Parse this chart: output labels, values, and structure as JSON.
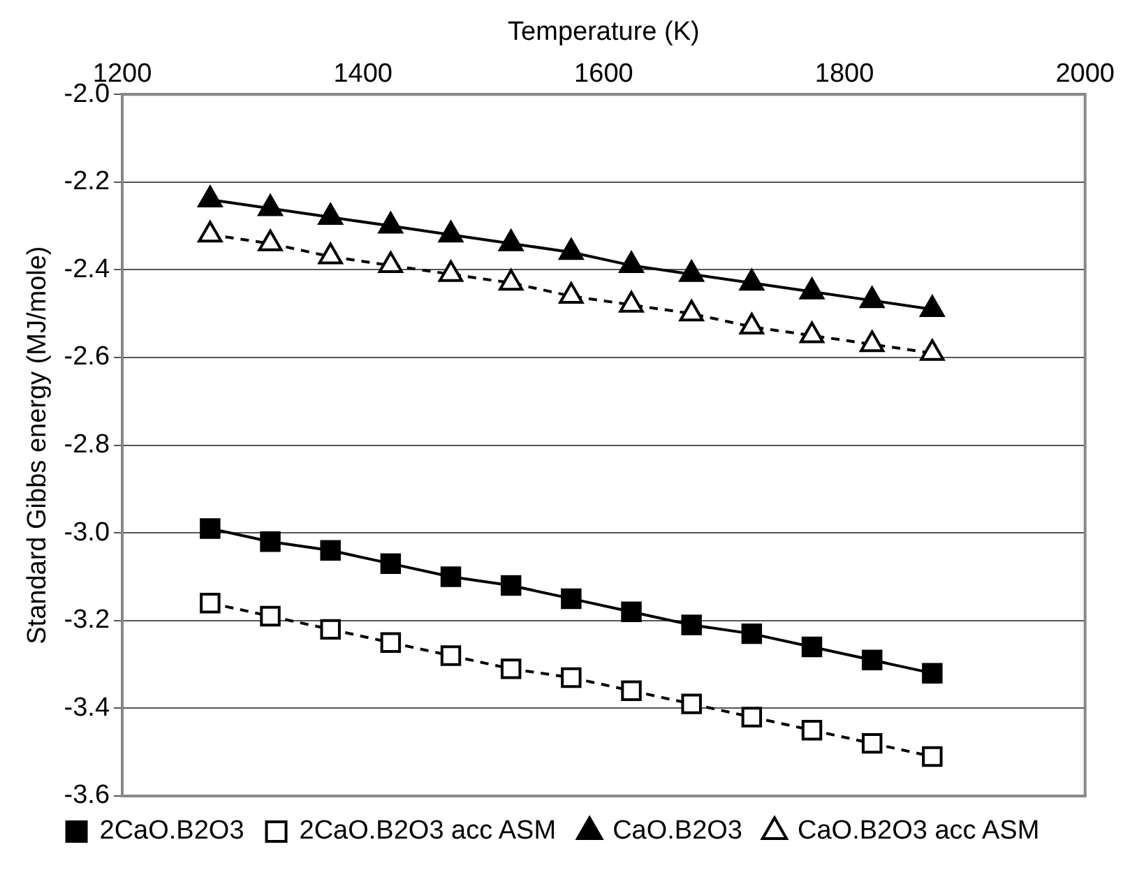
{
  "chart_data": {
    "type": "line",
    "xlabel": "Temperature (K)",
    "ylabel": "Standard Gibbs energy (MJ/mole)",
    "x": [
      1273,
      1323,
      1373,
      1423,
      1473,
      1523,
      1573,
      1623,
      1673,
      1723,
      1773,
      1823,
      1873
    ],
    "series": [
      {
        "name": "2CaO.B2O3",
        "color": "#000000",
        "marker": "square",
        "line_style": "solid",
        "values": [
          -2.99,
          -3.02,
          -3.04,
          -3.07,
          -3.1,
          -3.12,
          -3.15,
          -3.18,
          -3.21,
          -3.23,
          -3.26,
          -3.29,
          -3.32
        ]
      },
      {
        "name": "2CaO.B2O3 acc ASM",
        "color": "#000000",
        "marker": "square",
        "line_style": "dashed",
        "values": [
          -3.16,
          -3.19,
          -3.22,
          -3.25,
          -3.28,
          -3.31,
          -3.33,
          -3.36,
          -3.39,
          -3.42,
          -3.45,
          -3.48,
          -3.51
        ]
      },
      {
        "name": "CaO.B2O3",
        "color": "#000000",
        "marker": "triangle",
        "line_style": "solid",
        "values": [
          -2.24,
          -2.26,
          -2.28,
          -2.3,
          -2.32,
          -2.34,
          -2.36,
          -2.39,
          -2.41,
          -2.43,
          -2.45,
          -2.47,
          -2.49
        ]
      },
      {
        "name": "CaO.B2O3 acc ASM",
        "color": "#000000",
        "marker": "triangle",
        "line_style": "dashed",
        "values": [
          -2.32,
          -2.34,
          -2.37,
          -2.39,
          -2.41,
          -2.43,
          -2.46,
          -2.48,
          -2.5,
          -2.53,
          -2.55,
          -2.57,
          -2.59
        ]
      }
    ],
    "xlim": [
      1200,
      2000
    ],
    "xticks": [
      1200,
      1400,
      1600,
      1800,
      2000
    ],
    "ylim": [
      -3.6,
      -2.0
    ],
    "yticks": [
      -3.6,
      -3.4,
      -3.2,
      {
        "value": -3.0,
        "label": "-3.0"
      },
      -2.8,
      -2.6,
      -2.4,
      -2.2,
      {
        "value": -2.0,
        "label": "-2.0"
      }
    ],
    "grid": "y",
    "legend": "bottom"
  }
}
